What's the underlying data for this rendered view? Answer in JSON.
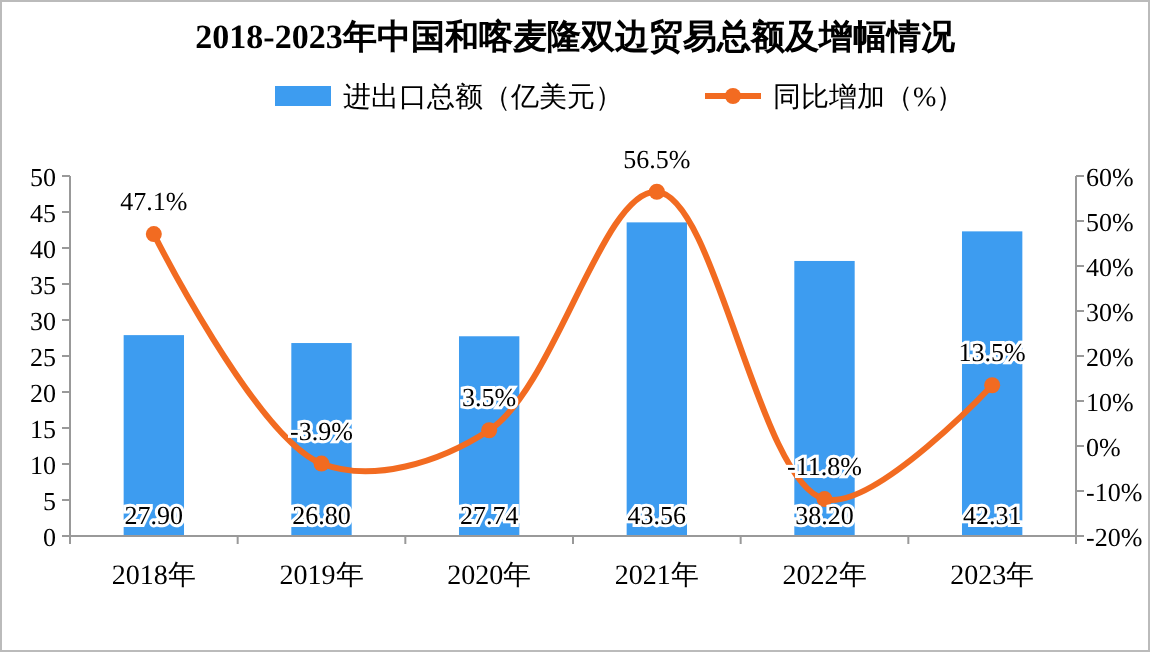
{
  "chart_data": {
    "type": "bar",
    "title": "2018-2023年中国和喀麦隆双边贸易总额及增幅情况",
    "categories": [
      "2018年",
      "2019年",
      "2020年",
      "2021年",
      "2022年",
      "2023年"
    ],
    "series": [
      {
        "name": "进出口总额（亿美元）",
        "color": "#3d9cf0",
        "values": [
          27.9,
          26.8,
          27.74,
          43.56,
          38.2,
          42.31
        ],
        "value_labels": [
          "27.90",
          "26.80",
          "27.74",
          "43.56",
          "38.20",
          "42.31"
        ]
      },
      {
        "name": "同比增加（%）",
        "type": "line",
        "axis": "y2",
        "color": "#f26b21",
        "values": [
          47.1,
          -3.9,
          3.5,
          56.5,
          -11.8,
          13.5
        ],
        "value_labels": [
          "47.1%",
          "-3.9%",
          "3.5%",
          "56.5%",
          "-11.8%",
          "13.5%"
        ]
      }
    ],
    "ylim": [
      0,
      50
    ],
    "yticks": [
      0,
      5,
      10,
      15,
      20,
      25,
      30,
      35,
      40,
      45,
      50
    ],
    "y2lim": [
      -20,
      60
    ],
    "y2ticks": [
      {
        "value": -20,
        "label": "-20%"
      },
      {
        "value": -10,
        "label": "-10%"
      },
      {
        "value": 0,
        "label": "0%"
      },
      {
        "value": 10,
        "label": "10%"
      },
      {
        "value": 20,
        "label": "20%"
      },
      {
        "value": 30,
        "label": "30%"
      },
      {
        "value": 40,
        "label": "40%"
      },
      {
        "value": 50,
        "label": "50%"
      },
      {
        "value": 60,
        "label": "60%"
      }
    ],
    "marker": "circle",
    "legend": "top",
    "grid": false
  }
}
